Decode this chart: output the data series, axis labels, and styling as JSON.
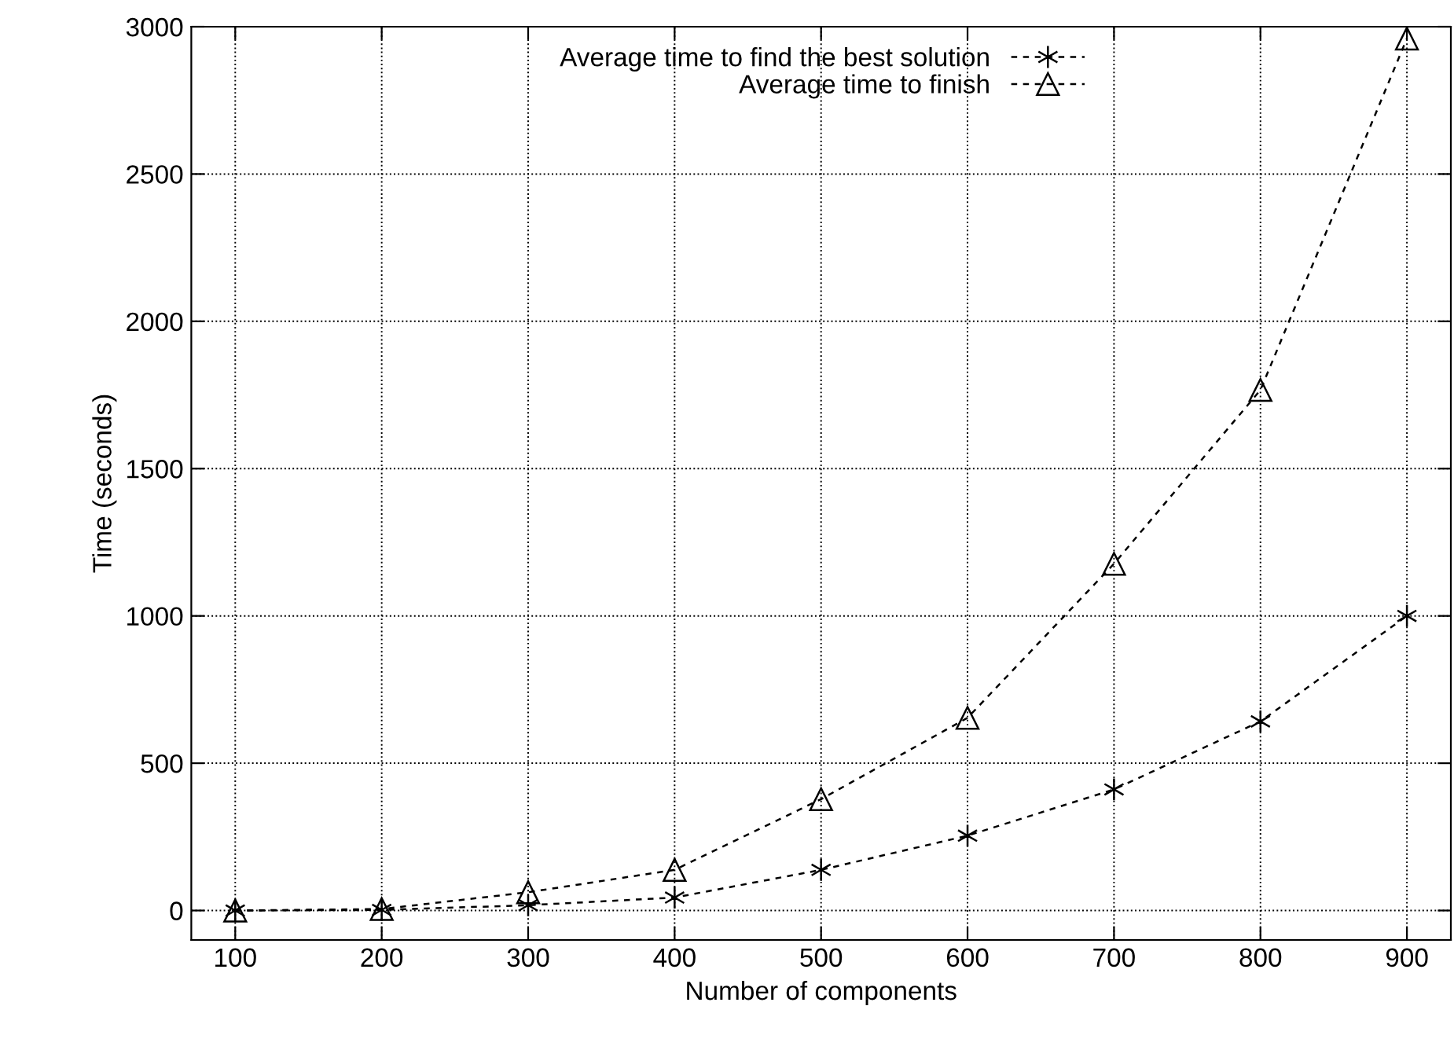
{
  "chart_data": {
    "type": "line",
    "xlabel": "Number of components",
    "ylabel": "Time (seconds)",
    "x": [
      100,
      200,
      300,
      400,
      500,
      600,
      700,
      800,
      900
    ],
    "series": [
      {
        "name": "Average time to find the best solution",
        "color": "#000000",
        "marker": "cross",
        "values": [
          0,
          2,
          18,
          44,
          138,
          254,
          411,
          642,
          1000
        ]
      },
      {
        "name": "Average time to finish",
        "color": "#000000",
        "marker": "triangle",
        "values": [
          0,
          5,
          62,
          138,
          378,
          654,
          1177,
          1767,
          2960
        ]
      }
    ],
    "xlim": [
      70,
      930
    ],
    "ylim": [
      -100,
      3000
    ],
    "xticks": [
      100,
      200,
      300,
      400,
      500,
      600,
      700,
      800,
      900
    ],
    "yticks": [
      0,
      500,
      1000,
      1500,
      2000,
      2500,
      3000
    ],
    "grid": true,
    "legend": "top right",
    "line_style": "dashed"
  }
}
